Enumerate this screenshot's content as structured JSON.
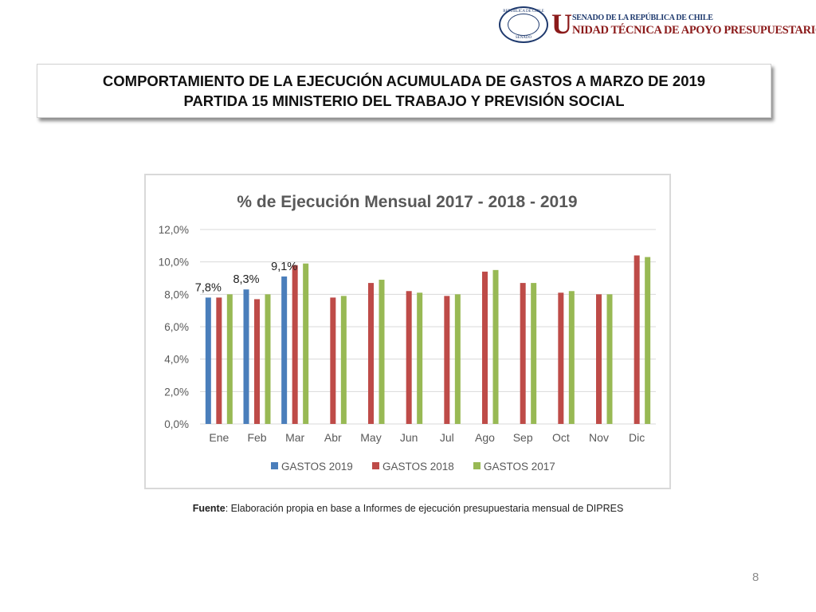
{
  "header": {
    "seal_top_text": "REPÚBLICA DE CHILE",
    "seal_bottom_text": "SENADO",
    "logo_letter": "U",
    "org_line1": "SENADO DE LA REPÚBLICA DE CHILE",
    "org_line2": "NIDAD TÉCNICA DE APOYO PRESUPUESTARIO"
  },
  "title": {
    "line1": "COMPORTAMIENTO DE LA EJECUCIÓN ACUMULADA DE GASTOS A MARZO DE 2019",
    "line2": "PARTIDA 15 MINISTERIO DEL TRABAJO Y PREVISIÓN SOCIAL"
  },
  "chart_data": {
    "type": "bar",
    "title": "% de Ejecución Mensual 2017 - 2018 - 2019",
    "categories": [
      "Ene",
      "Feb",
      "Mar",
      "Abr",
      "May",
      "Jun",
      "Jul",
      "Ago",
      "Sep",
      "Oct",
      "Nov",
      "Dic"
    ],
    "series": [
      {
        "name": "GASTOS 2019",
        "color": "#4a7ebb",
        "values": [
          7.8,
          8.3,
          9.1,
          null,
          null,
          null,
          null,
          null,
          null,
          null,
          null,
          null
        ]
      },
      {
        "name": "GASTOS 2018",
        "color": "#be4b48",
        "values": [
          7.8,
          7.7,
          9.8,
          7.8,
          8.7,
          8.2,
          7.9,
          9.4,
          8.7,
          8.1,
          8.0,
          10.4
        ]
      },
      {
        "name": "GASTOS 2017",
        "color": "#98b954",
        "values": [
          8.0,
          8.0,
          9.9,
          7.9,
          8.9,
          8.1,
          8.0,
          9.5,
          8.7,
          8.2,
          8.0,
          10.3
        ]
      }
    ],
    "data_labels": [
      {
        "series": 0,
        "index": 0,
        "text": "7,8%"
      },
      {
        "series": 0,
        "index": 1,
        "text": "8,3%"
      },
      {
        "series": 0,
        "index": 2,
        "text": "9,1%"
      }
    ],
    "ylim": [
      0,
      12
    ],
    "yticks": [
      0,
      2,
      4,
      6,
      8,
      10,
      12
    ],
    "ytick_labels": [
      "0,0%",
      "2,0%",
      "4,0%",
      "6,0%",
      "8,0%",
      "10,0%",
      "12,0%"
    ],
    "grid": true,
    "legend_position": "bottom"
  },
  "source": {
    "label": "Fuente",
    "text": ": Elaboración propia en base  a Informes de ejecución presupuestaria mensual de DIPRES"
  },
  "page_number": "8"
}
